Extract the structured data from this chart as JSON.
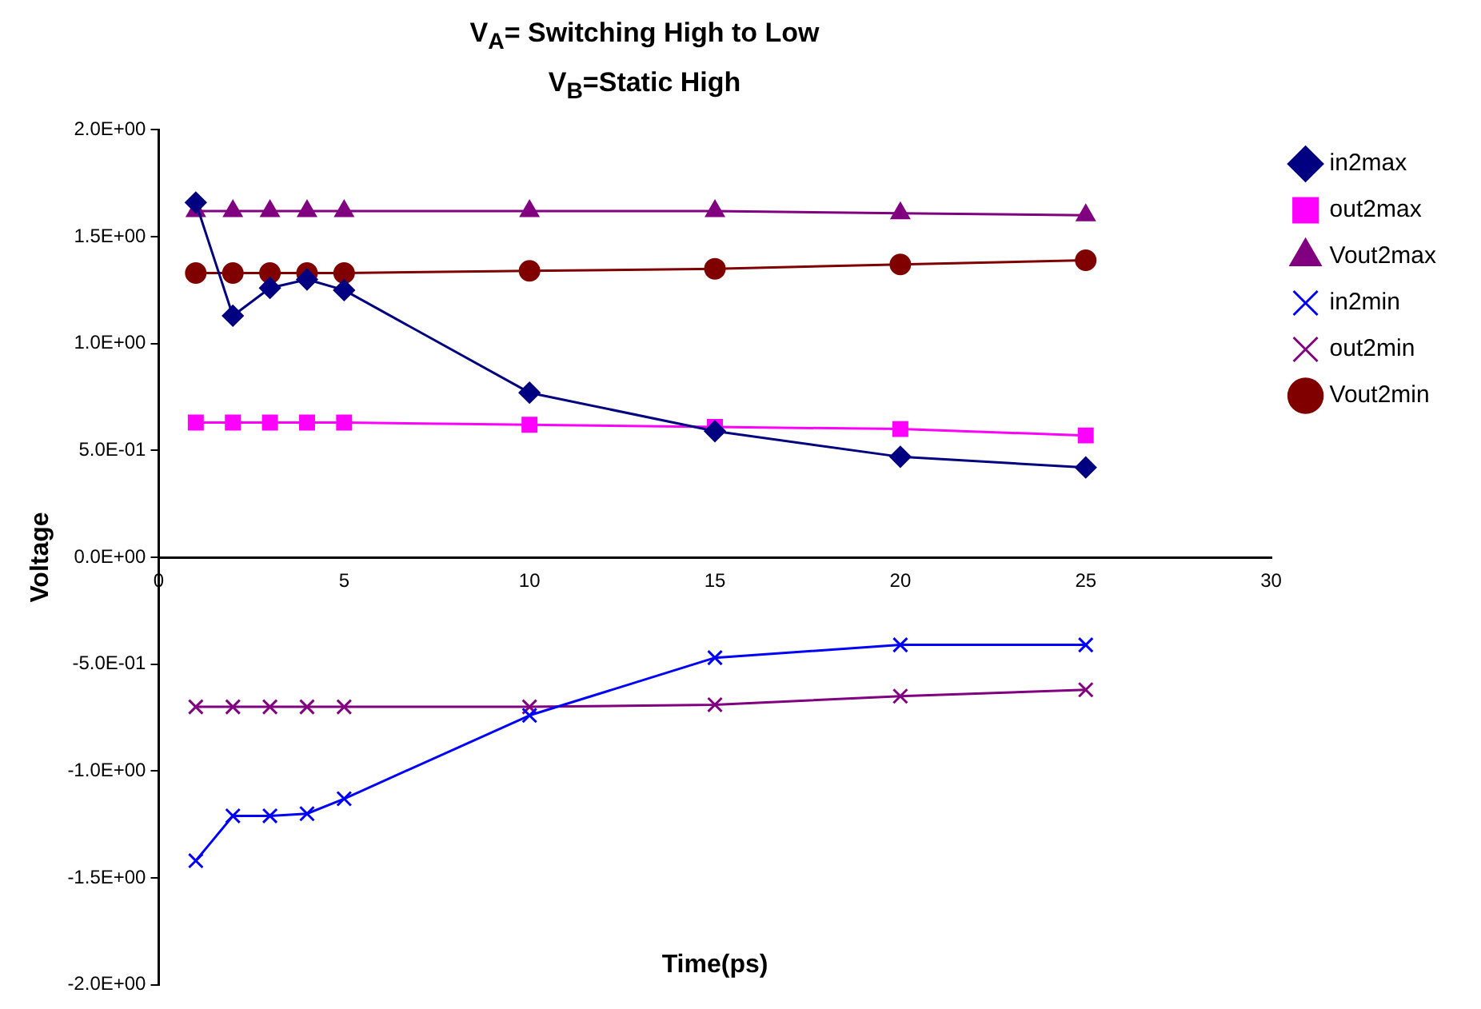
{
  "chart_data": {
    "type": "line",
    "title": "V$_{A}$= Switching High to Low",
    "subtitle": "V$_{B}$=Static High",
    "xlabel": "Time(ps)",
    "ylabel": "Voltage",
    "x": [
      1,
      2,
      3,
      4,
      5,
      10,
      15,
      20,
      25
    ],
    "xlim": [
      0,
      30
    ],
    "xticks": [
      0,
      5,
      10,
      15,
      20,
      25,
      30
    ],
    "ylim": [
      -2,
      2
    ],
    "yticks": [
      {
        "value": 2,
        "label": "2.0E+00"
      },
      {
        "value": 1.5,
        "label": "1.5E+00"
      },
      {
        "value": 1,
        "label": "1.0E+00"
      },
      {
        "value": 0.5,
        "label": "5.0E-01"
      },
      {
        "value": 0,
        "label": "0.0E+00"
      },
      {
        "value": -0.5,
        "label": "-5.0E-01"
      },
      {
        "value": -1,
        "label": "-1.0E+00"
      },
      {
        "value": -1.5,
        "label": "-1.5E+00"
      },
      {
        "value": -2,
        "label": "-2.0E+00"
      }
    ],
    "grid": false,
    "legend": "right",
    "line_style": "solid",
    "series": [
      {
        "name": "in2max",
        "color": "#000080",
        "marker": "diamond",
        "values": [
          1.66,
          1.13,
          1.26,
          1.3,
          1.25,
          0.77,
          0.59,
          0.47,
          0.42
        ]
      },
      {
        "name": "out2max",
        "color": "#ff00ff",
        "marker": "square",
        "values": [
          0.63,
          0.63,
          0.63,
          0.63,
          0.63,
          0.62,
          0.61,
          0.6,
          0.57
        ]
      },
      {
        "name": "Vout2max",
        "color": "#800080",
        "marker": "triangle",
        "values": [
          1.62,
          1.62,
          1.62,
          1.62,
          1.62,
          1.62,
          1.62,
          1.61,
          1.6
        ]
      },
      {
        "name": "in2min",
        "color": "#0000ff",
        "marker": "cross",
        "values": [
          -1.42,
          -1.21,
          -1.21,
          -1.2,
          -1.13,
          -0.74,
          -0.47,
          -0.41,
          -0.41
        ]
      },
      {
        "name": "out2min",
        "color": "#800080",
        "marker": "cross",
        "values": [
          -0.7,
          -0.7,
          -0.7,
          -0.7,
          -0.7,
          -0.7,
          -0.69,
          -0.65,
          -0.62
        ]
      },
      {
        "name": "Vout2min",
        "color": "#800000",
        "marker": "circle",
        "values": [
          1.33,
          1.33,
          1.33,
          1.33,
          1.33,
          1.34,
          1.35,
          1.37,
          1.39
        ]
      }
    ]
  }
}
